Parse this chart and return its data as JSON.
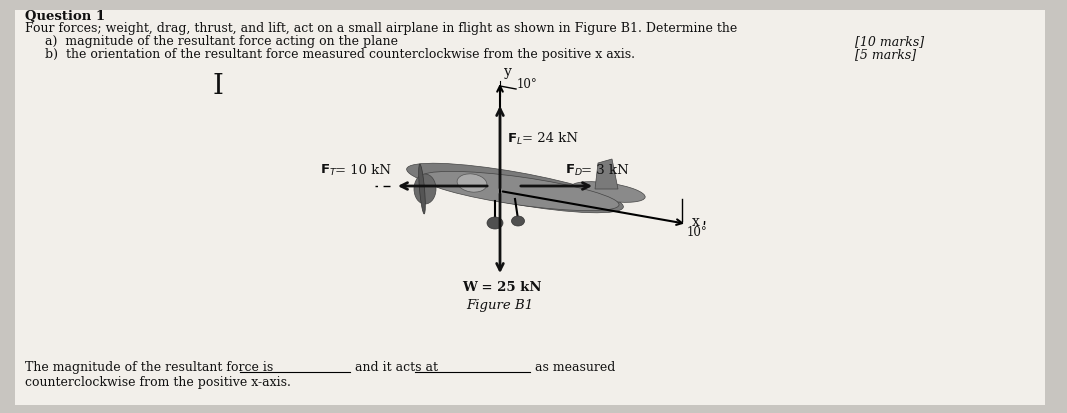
{
  "bg_color": "#c8c5c0",
  "paper_color": "#f2efea",
  "title_line1": "Question 1",
  "title_line2": "Four forces; weight, drag, thrust, and lift, act on a small airplane in flight as shown in Figure B1. Determine the",
  "item_a": "a)  magnitude of the resultant force acting on the plane",
  "item_b": "b)  the orientation of the resultant force measured counterclockwise from the positive x axis.",
  "marks_a": "[10 marks]",
  "marks_b": "[5 marks]",
  "FL_label_sub": "L",
  "FL_val": "= 24 kN",
  "FT_label_sub": "T",
  "FT_val": "= 10 kN",
  "FD_label_sub": "D",
  "FD_val": "= 3 kN",
  "W_label": "W = 25 kN",
  "figure_label": "Figure B1",
  "y_label": "y",
  "x_label": "x",
  "bottom_line1": "The magnitude of the resultant force is",
  "bottom_line1b": "and it acts at",
  "bottom_line1c": "as measured",
  "bottom_line2": "counterclockwise from the positive x-axis.",
  "font_color": "#111111",
  "arrow_color": "#111111"
}
